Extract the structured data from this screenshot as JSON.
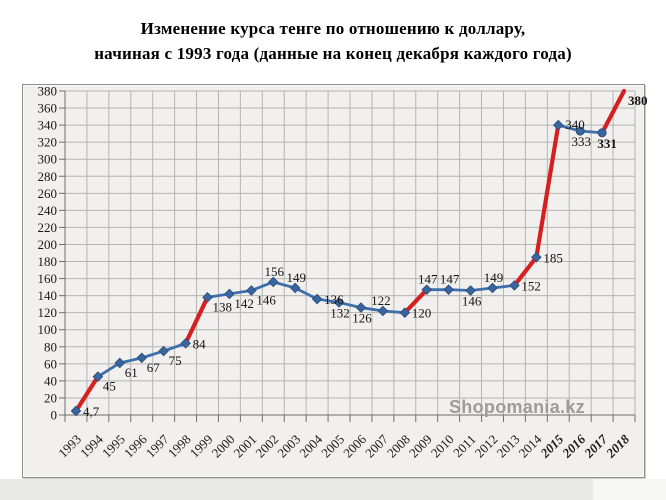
{
  "title": {
    "line1": "Изменение курса тенге по отношению к доллару,",
    "line2": "начиная с 1993 года (данные на конец декабря каждого года)"
  },
  "watermark": "Shopomania.kz",
  "chart_data": {
    "type": "line",
    "title": "Изменение курса тенге по отношению к доллару, начиная с 1993 года (данные на конец декабря каждого года)",
    "xlabel": "",
    "ylabel": "",
    "ylim": [
      0,
      380
    ],
    "ytick_step": 20,
    "grid": true,
    "legend": "none",
    "categories": [
      "1993",
      "1994",
      "1995",
      "1996",
      "1997",
      "1998",
      "1999",
      "2000",
      "2001",
      "2002",
      "2003",
      "2004",
      "2005",
      "2006",
      "2007",
      "2008",
      "2009",
      "2010",
      "2011",
      "2012",
      "2013",
      "2014",
      "2015",
      "2016",
      "2017",
      "2018"
    ],
    "values": [
      4.7,
      45,
      61,
      67,
      75,
      84,
      138,
      142,
      146,
      156,
      149,
      136,
      132,
      126,
      122,
      120,
      147,
      147,
      146,
      149,
      152,
      185,
      340,
      333,
      331,
      380
    ],
    "points": [
      {
        "year": "1993",
        "label": "4,7",
        "pos": "right",
        "marker": "diamond"
      },
      {
        "year": "1994",
        "label": "45",
        "pos": "below-right",
        "marker": "diamond"
      },
      {
        "year": "1995",
        "label": "61",
        "pos": "below-right",
        "marker": "diamond"
      },
      {
        "year": "1996",
        "label": "67",
        "pos": "below-right",
        "marker": "diamond"
      },
      {
        "year": "1997",
        "label": "75",
        "pos": "below-right",
        "marker": "diamond"
      },
      {
        "year": "1998",
        "label": "84",
        "pos": "right",
        "marker": "diamond"
      },
      {
        "year": "1999",
        "label": "138",
        "pos": "below-right",
        "marker": "diamond"
      },
      {
        "year": "2000",
        "label": "142",
        "pos": "below-right",
        "marker": "diamond"
      },
      {
        "year": "2001",
        "label": "146",
        "pos": "below-right",
        "marker": "diamond"
      },
      {
        "year": "2002",
        "label": "156",
        "pos": "above",
        "marker": "diamond"
      },
      {
        "year": "2003",
        "label": "149",
        "pos": "above",
        "marker": "diamond"
      },
      {
        "year": "2004",
        "label": "136",
        "pos": "right",
        "marker": "diamond"
      },
      {
        "year": "2005",
        "label": "132",
        "pos": "below",
        "marker": "diamond"
      },
      {
        "year": "2006",
        "label": "126",
        "pos": "below",
        "marker": "diamond"
      },
      {
        "year": "2007",
        "label": "122",
        "pos": "above",
        "marker": "diamond",
        "dx": -3
      },
      {
        "year": "2008",
        "label": "120",
        "pos": "right",
        "marker": "diamond"
      },
      {
        "year": "2009",
        "label": "147",
        "pos": "above",
        "marker": "diamond"
      },
      {
        "year": "2010",
        "label": "147",
        "pos": "above",
        "marker": "diamond"
      },
      {
        "year": "2011",
        "label": "146",
        "pos": "below",
        "marker": "diamond"
      },
      {
        "year": "2012",
        "label": "149",
        "pos": "above",
        "marker": "diamond"
      },
      {
        "year": "2013",
        "label": "152",
        "pos": "right",
        "marker": "diamond"
      },
      {
        "year": "2014",
        "label": "185",
        "pos": "right",
        "marker": "diamond"
      },
      {
        "year": "2015",
        "label": "340",
        "pos": "right",
        "marker": "diamond",
        "dy": -1,
        "axis_bold": true
      },
      {
        "year": "2016",
        "label": "333",
        "pos": "below",
        "marker": "circle",
        "axis_bold": true
      },
      {
        "year": "2017",
        "label": "331",
        "pos": "below",
        "marker": "circle",
        "bold": true,
        "dx": 4,
        "axis_bold": true
      },
      {
        "year": "2018",
        "label": "380",
        "pos": "right",
        "marker": "none",
        "bold": true,
        "dx": -3,
        "dy": 9,
        "axis_bold": true
      }
    ],
    "red_segments": [
      [
        "1993",
        "1994"
      ],
      [
        "1998",
        "1999"
      ],
      [
        "2008",
        "2009"
      ],
      [
        "2013",
        "2014"
      ],
      [
        "2014",
        "2015"
      ],
      [
        "2017",
        "2018"
      ]
    ],
    "colors": {
      "line_blue": "#3e6fad",
      "line_red": "#d42020",
      "marker_fill": "#3a66a0",
      "marker_stroke": "#2d5180",
      "grid": "#b4b4b2",
      "axis": "#6e6e6c",
      "plot_bg": "#f1f0ee",
      "label_text": "#161616",
      "axis_text": "#1a1a1a",
      "watermark": "#9c9c9a"
    }
  }
}
